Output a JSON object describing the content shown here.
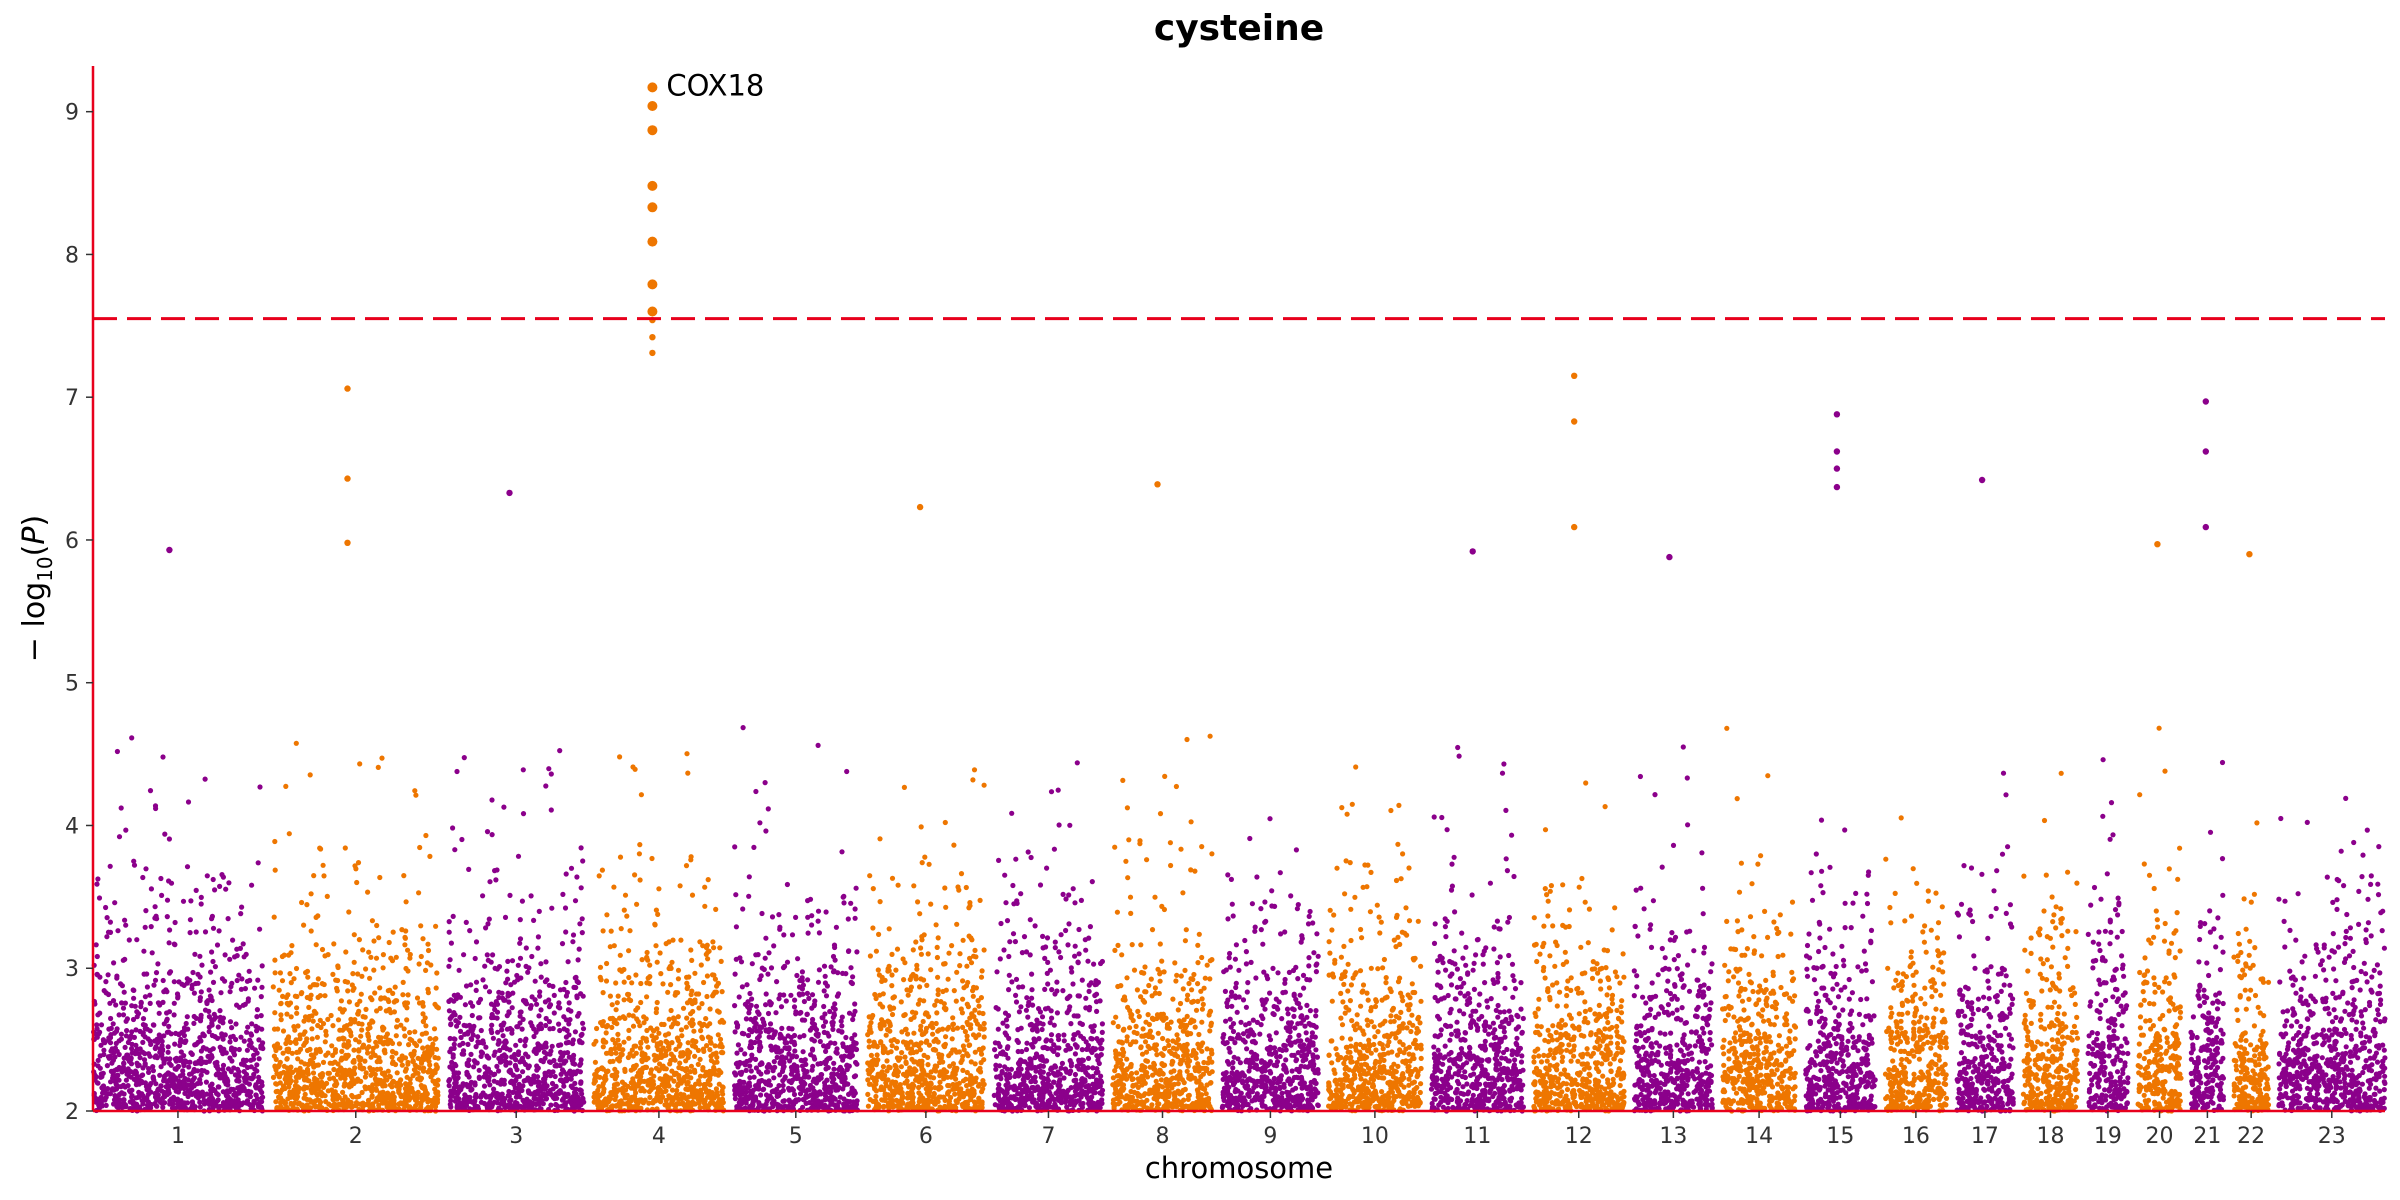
{
  "chart_data": {
    "type": "scatter",
    "title": "cysteine",
    "xlabel": "chromosome",
    "ylabel": "−log10(P)",
    "ylim": [
      2,
      9.32
    ],
    "yticks": [
      2,
      3,
      4,
      5,
      6,
      7,
      8,
      9
    ],
    "threshold": 7.55,
    "grid": false,
    "colors": {
      "even": "#EE7600",
      "odd": "#8B008B",
      "axis": "#E8001C",
      "threshold": "#E8001C",
      "text": "#000000",
      "tick_text": "#333333"
    },
    "chromosomes": [
      "1",
      "2",
      "3",
      "4",
      "5",
      "6",
      "7",
      "8",
      "9",
      "10",
      "11",
      "12",
      "13",
      "14",
      "15",
      "16",
      "17",
      "18",
      "19",
      "20",
      "21",
      "22",
      "23"
    ],
    "highlight_points": [
      {
        "chr": "4",
        "y": 9.17
      },
      {
        "chr": "4",
        "y": 9.04
      },
      {
        "chr": "4",
        "y": 8.87
      },
      {
        "chr": "4",
        "y": 8.48
      },
      {
        "chr": "4",
        "y": 8.33
      },
      {
        "chr": "4",
        "y": 8.09
      },
      {
        "chr": "4",
        "y": 7.79
      },
      {
        "chr": "4",
        "y": 7.6
      },
      {
        "chr": "4",
        "y": 7.54
      },
      {
        "chr": "4",
        "y": 7.42
      },
      {
        "chr": "4",
        "y": 7.31
      },
      {
        "chr": "2",
        "y": 7.06
      },
      {
        "chr": "2",
        "y": 6.43
      },
      {
        "chr": "2",
        "y": 5.98
      },
      {
        "chr": "12",
        "y": 7.15
      },
      {
        "chr": "12",
        "y": 6.83
      },
      {
        "chr": "12",
        "y": 6.09
      },
      {
        "chr": "15",
        "y": 6.88
      },
      {
        "chr": "15",
        "y": 6.62
      },
      {
        "chr": "15",
        "y": 6.5
      },
      {
        "chr": "15",
        "y": 6.37
      },
      {
        "chr": "21",
        "y": 6.97
      },
      {
        "chr": "21",
        "y": 6.62
      },
      {
        "chr": "21",
        "y": 6.09
      },
      {
        "chr": "17",
        "y": 6.42
      },
      {
        "chr": "8",
        "y": 6.39
      },
      {
        "chr": "3",
        "y": 6.33
      },
      {
        "chr": "6",
        "y": 6.23
      },
      {
        "chr": "1",
        "y": 5.93
      },
      {
        "chr": "11",
        "y": 5.92
      },
      {
        "chr": "13",
        "y": 5.88
      },
      {
        "chr": "22",
        "y": 5.9
      },
      {
        "chr": "20",
        "y": 5.97
      }
    ],
    "annotations": [
      {
        "text": "COX18",
        "chr": "4",
        "y": 9.17
      }
    ]
  }
}
